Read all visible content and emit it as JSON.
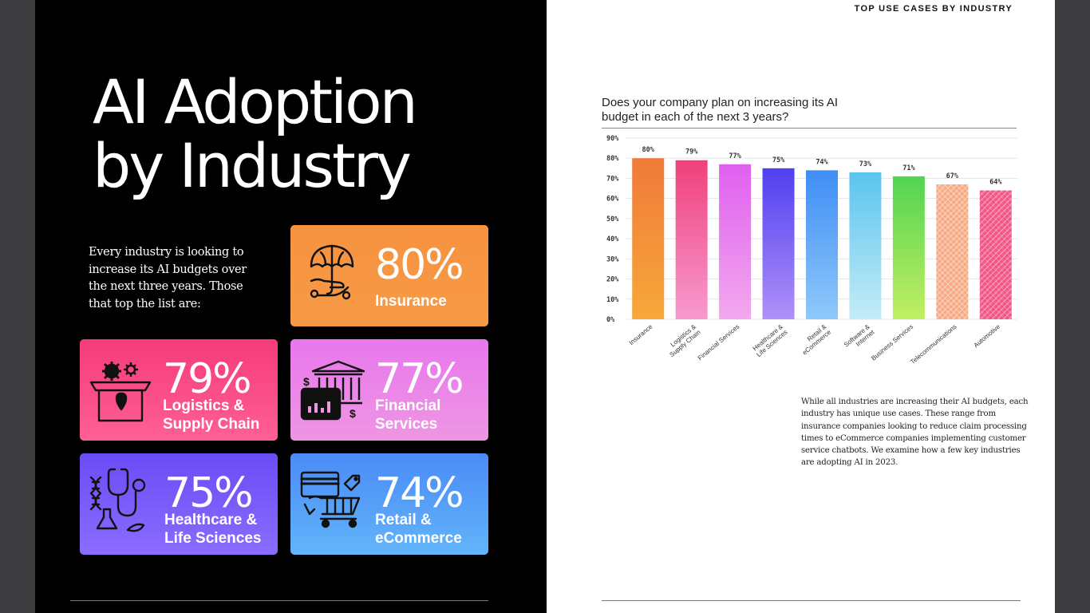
{
  "left": {
    "title_line1": "AI Adoption",
    "title_line2": "by Industry",
    "intro": "Every industry is looking to increase its AI budgets over the next three years. Those that top the list are:",
    "cards": [
      {
        "pct": "80%",
        "label": "Insurance",
        "icon": "umbrella-hand-icon"
      },
      {
        "pct": "79%",
        "label": "Logistics &\nSupply Chain",
        "icon": "gears-box-pin-icon"
      },
      {
        "pct": "77%",
        "label": "Financial\nServices",
        "icon": "bank-chart-icon"
      },
      {
        "pct": "75%",
        "label": "Healthcare &\nLife Sciences",
        "icon": "stethoscope-dna-flask-icon"
      },
      {
        "pct": "74%",
        "label": "Retail &\neCommerce",
        "icon": "card-cart-tag-icon"
      }
    ]
  },
  "right": {
    "header": "TOP USE CASES BY INDUSTRY",
    "chart_title": "Does your company plan on increasing its AI budget in each of the next 3 years?",
    "body": "While all industries are increasing their AI budgets, each industry has unique use cases. These range from insurance companies looking to reduce claim processing times to eCommerce companies implementing customer service chatbots. We examine how a few key industries are adopting AI in 2023."
  },
  "chart_data": {
    "type": "bar",
    "title": "Does your company plan on increasing its AI budget in each of the next 3 years?",
    "categories": [
      "Insurance",
      "Logistics & Supply Chain",
      "Financial Services",
      "Healthcare & Life Sciences",
      "Retail & eCommerce",
      "Software & Internet",
      "Business Services",
      "Telecommunications",
      "Automotive"
    ],
    "category_lines": [
      [
        "Insurance"
      ],
      [
        "Logistics &",
        "Supply Chain"
      ],
      [
        "Financial Services"
      ],
      [
        "Healthcare &",
        "Life Sciences"
      ],
      [
        "Retail &",
        "eCommerce"
      ],
      [
        "Software &",
        "Internet"
      ],
      [
        "Business Services"
      ],
      [
        "Telecommunications"
      ],
      [
        "Automotive"
      ]
    ],
    "values": [
      80,
      79,
      77,
      75,
      74,
      73,
      71,
      67,
      64
    ],
    "value_labels": [
      "80%",
      "79%",
      "77%",
      "75%",
      "74%",
      "73%",
      "71%",
      "67%",
      "64%"
    ],
    "ylim": [
      0,
      90
    ],
    "yticks": [
      0,
      10,
      20,
      30,
      40,
      50,
      60,
      70,
      80,
      90
    ],
    "ytick_labels": [
      "0%",
      "10%",
      "20%",
      "30%",
      "40%",
      "50%",
      "60%",
      "70%",
      "80%",
      "90%"
    ],
    "xlabel": "",
    "ylabel": "",
    "grid": true,
    "colors": [
      [
        "#f07a3a",
        "#f7a83a"
      ],
      [
        "#f0407a",
        "#f79ad0"
      ],
      [
        "#e060f0",
        "#f2a8ee"
      ],
      [
        "#5040f0",
        "#b090f8"
      ],
      [
        "#3f8ef5",
        "#8fc8fb"
      ],
      [
        "#5ac4ee",
        "#c5ecf7"
      ],
      [
        "#52d452",
        "#c2ef62"
      ],
      [
        "#f59a82",
        "#fbc79a"
      ],
      [
        "#ee4a7c",
        "#f6709a"
      ]
    ],
    "hatched": [
      false,
      false,
      false,
      false,
      false,
      false,
      false,
      true,
      true
    ]
  }
}
